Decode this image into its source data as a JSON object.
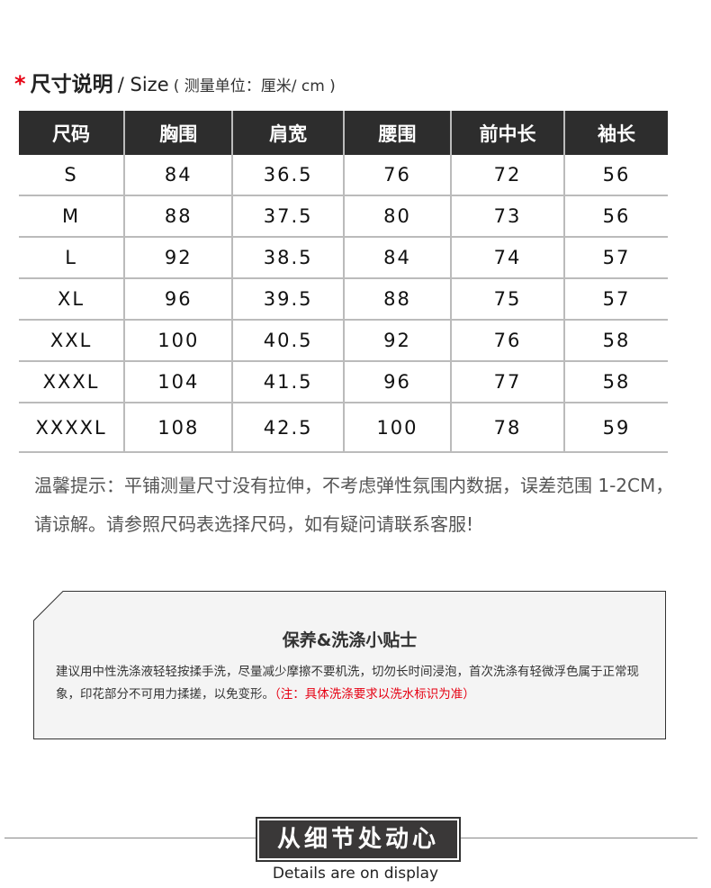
{
  "header": {
    "star": "*",
    "title_cn": "尺寸说明",
    "title_en": "/ Size",
    "unit": "( 测量单位：厘米/ cm )"
  },
  "table": {
    "columns": [
      "尺码",
      "胸围",
      "肩宽",
      "腰围",
      "前中长",
      "袖长"
    ],
    "rows": [
      [
        "S",
        "84",
        "36.5",
        "76",
        "72",
        "56"
      ],
      [
        "M",
        "88",
        "37.5",
        "80",
        "73",
        "56"
      ],
      [
        "L",
        "92",
        "38.5",
        "84",
        "74",
        "57"
      ],
      [
        "XL",
        "96",
        "39.5",
        "88",
        "75",
        "57"
      ],
      [
        "XXL",
        "100",
        "40.5",
        "92",
        "76",
        "58"
      ],
      [
        "XXXL",
        "104",
        "41.5",
        "96",
        "77",
        "58"
      ],
      [
        "XXXXL",
        "108",
        "42.5",
        "100",
        "78",
        "59"
      ]
    ]
  },
  "note": "温馨提示：平铺测量尺寸没有拉伸，不考虑弹性氛围内数据，误差范围 1-2CM，请谅解。请参照尺码表选择尺码，如有疑问请联系客服!",
  "care": {
    "title": "保养&洗涤小贴士",
    "body": "建议用中性洗涤液轻轻按揉手洗，尽量减少摩擦不要机洗，切勿长时间浸泡，首次洗涤有轻微浮色属于正常现象，印花部分不可用力揉搓，以免变形。",
    "note": "（注：具体洗涤要求以洗水标识为准）",
    "note_color": "#e60012"
  },
  "footer": {
    "badge": "从细节处动心",
    "subtitle": "Details are on display"
  }
}
